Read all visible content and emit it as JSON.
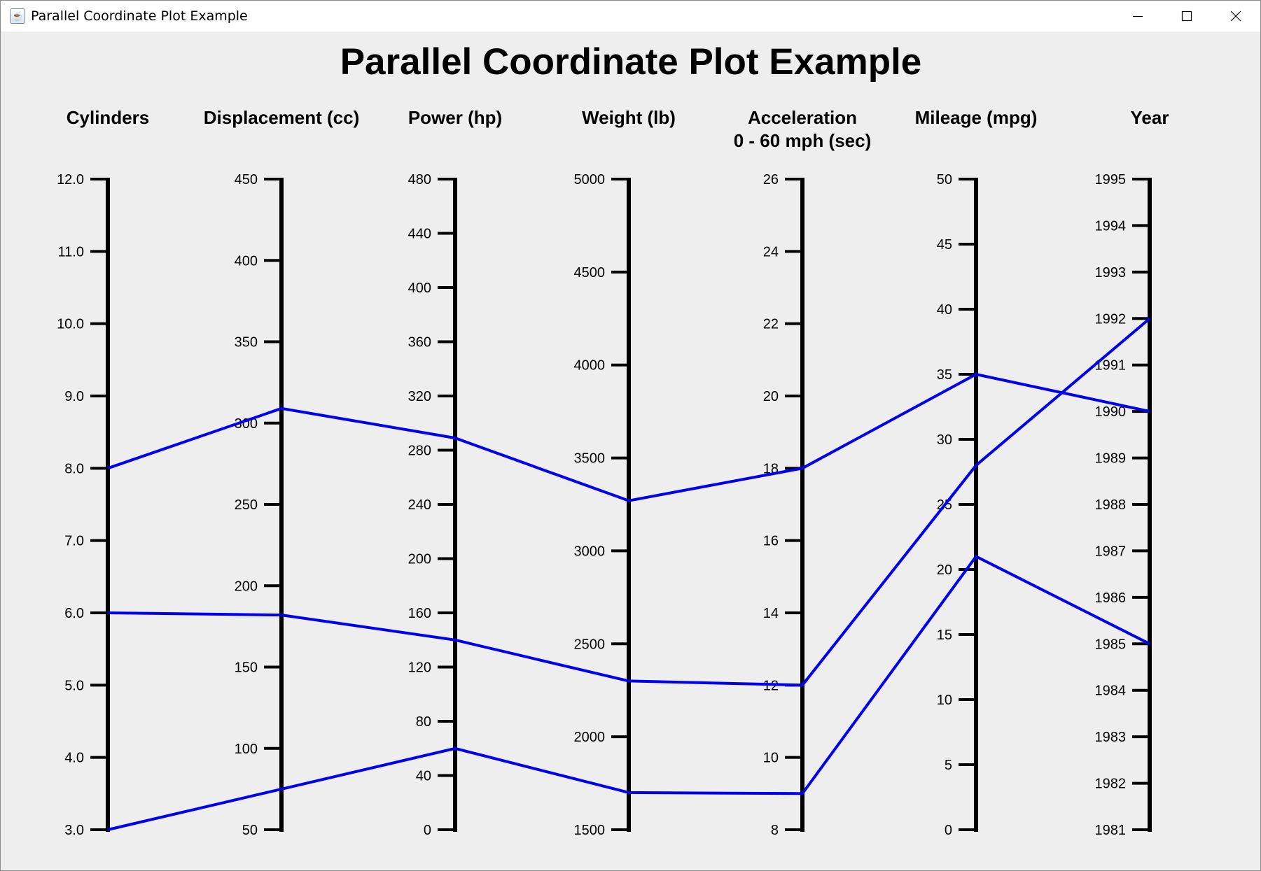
{
  "window": {
    "title": "Parallel Coordinate Plot Example",
    "icon": "java-coffee-icon",
    "controls": [
      "minimize-icon",
      "maximize-icon",
      "close-icon"
    ]
  },
  "colors": {
    "background": "#eeeeee",
    "axis": "#000000",
    "line": "#0000ee"
  },
  "chart_data": {
    "type": "parallel-coordinates",
    "title": "Parallel Coordinate Plot Example",
    "axes": [
      {
        "label": [
          "Cylinders"
        ],
        "min": 3,
        "max": 12,
        "ticks": [
          "3.0",
          "4.0",
          "5.0",
          "6.0",
          "7.0",
          "8.0",
          "9.0",
          "10.0",
          "11.0",
          "12.0"
        ]
      },
      {
        "label": [
          "Displacement (cc)"
        ],
        "min": 50,
        "max": 450,
        "ticks": [
          "50",
          "100",
          "150",
          "200",
          "250",
          "300",
          "350",
          "400",
          "450"
        ]
      },
      {
        "label": [
          "Power (hp)"
        ],
        "min": 0,
        "max": 480,
        "ticks": [
          "0",
          "40",
          "80",
          "120",
          "160",
          "200",
          "240",
          "280",
          "320",
          "360",
          "400",
          "440",
          "480"
        ]
      },
      {
        "label": [
          "Weight (lb)"
        ],
        "min": 1500,
        "max": 5000,
        "ticks": [
          "1500",
          "2000",
          "2500",
          "3000",
          "3500",
          "4000",
          "4500",
          "5000"
        ]
      },
      {
        "label": [
          "Acceleration",
          "0 - 60 mph (sec)"
        ],
        "min": 8,
        "max": 26,
        "ticks": [
          "8",
          "10",
          "12",
          "14",
          "16",
          "18",
          "20",
          "22",
          "24",
          "26"
        ]
      },
      {
        "label": [
          "Mileage (mpg)"
        ],
        "min": 0,
        "max": 50,
        "ticks": [
          "0",
          "5",
          "10",
          "15",
          "20",
          "25",
          "30",
          "35",
          "40",
          "45",
          "50"
        ]
      },
      {
        "label": [
          "Year"
        ],
        "min": 1981,
        "max": 1995,
        "ticks": [
          "1981",
          "1982",
          "1983",
          "1984",
          "1985",
          "1986",
          "1987",
          "1988",
          "1989",
          "1990",
          "1991",
          "1992",
          "1993",
          "1994",
          "1995"
        ]
      }
    ],
    "series": [
      {
        "values": [
          8,
          309,
          289,
          3270,
          18,
          35,
          1990
        ]
      },
      {
        "values": [
          6,
          182,
          140,
          2300,
          12,
          28,
          1992
        ]
      },
      {
        "values": [
          3,
          75,
          60,
          1700,
          9,
          21,
          1985
        ]
      }
    ]
  }
}
